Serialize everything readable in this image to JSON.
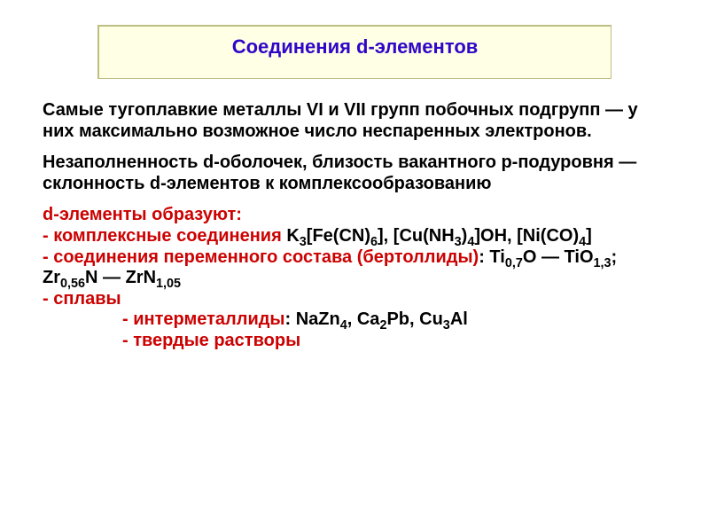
{
  "colors": {
    "title_bg": "#feffe4",
    "title_border": "#bcbf81",
    "title_text": "#3006c9",
    "body_text": "#000000",
    "red": "#cc0202"
  },
  "title": "Соединения d-элементов",
  "para1": "Самые тугоплавкие металлы VI и VII групп побочных подгрупп — у них максимально возможное число неспаренных электронов.",
  "para2": "Незаполненность d-оболочек, близость вакантного p-подуровня — склонность d-элементов к комплексообразованию",
  "dlist": {
    "head": "d-элементы образуют:",
    "item1_label": "- комплексные соединения",
    "item1_rest_a": "  K",
    "item1_rest_b": "[Fe(CN)",
    "item1_rest_c": "], [Cu(NH",
    "item1_rest_d": ")",
    "item1_rest_e": "]OH, [Ni(CO)",
    "item1_rest_f": "]",
    "item2_label": "- соединения переменного состава (бертоллиды)",
    "item2_rest_a": ": Ti",
    "item2_rest_b": "O — TiO",
    "item2_rest_c": ";  Zr",
    "item2_rest_d": "N — ZrN",
    "item3": "- сплавы",
    "item3a_label": "- интерметаллиды",
    "item3a_rest_a": ": NaZn",
    "item3a_rest_b": ", Ca",
    "item3a_rest_c": "Pb, Cu",
    "item3a_rest_d": "Al",
    "item3b": "- твердые растворы"
  },
  "subs": {
    "k3": "3",
    "cn6": "6",
    "nh3": "3",
    "nh34": "4",
    "co4": "4",
    "ti07": "0,7",
    "tio13": "1,3",
    "zr056": "0,56",
    "zrn105": "1,05",
    "nazn4": "4",
    "ca2": "2",
    "cu3": "3"
  },
  "fontsize": {
    "title": 22,
    "body": 20
  }
}
